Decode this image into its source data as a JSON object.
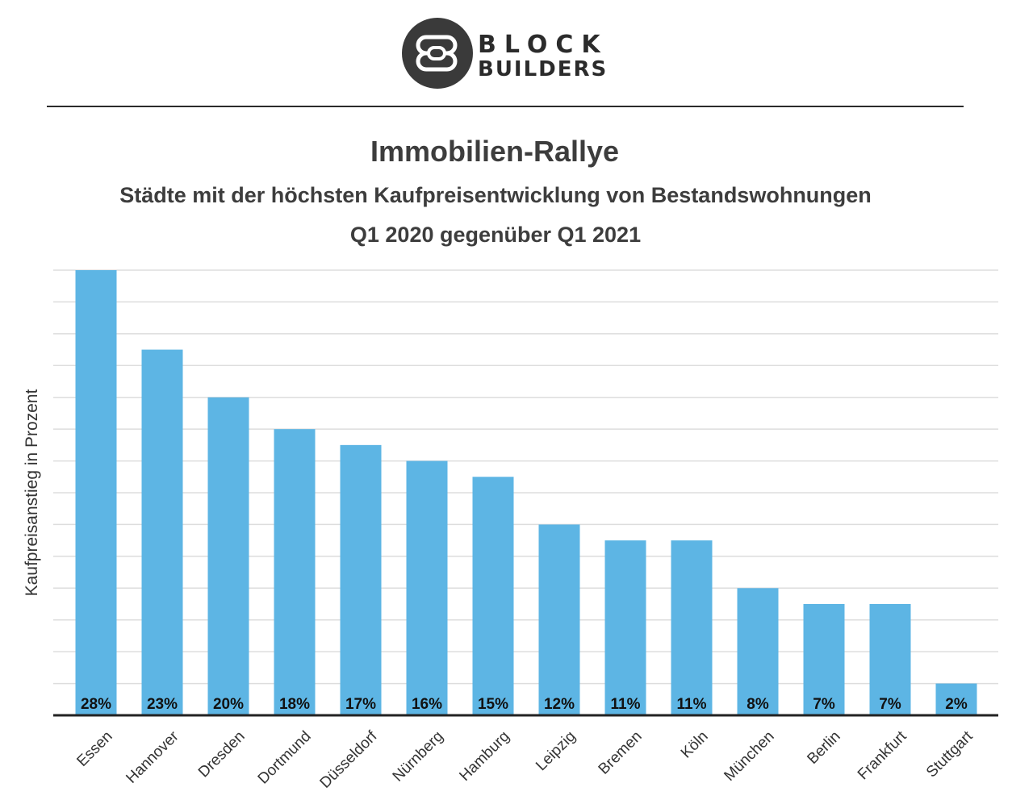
{
  "logo": {
    "line1": "BLOCK",
    "line2": "BUILDERS"
  },
  "colors": {
    "bar": "#5db5e4",
    "grid": "#dddddd",
    "axis": "#222222",
    "text": "#3d3d3d",
    "logo": "#3a3a3a"
  },
  "chart_data": {
    "type": "bar",
    "title": "Immobilien-Rallye",
    "subtitle": [
      "Städte mit der höchsten Kaufpreisentwicklung von Bestandswohnungen",
      "Q1 2020 gegenüber Q1 2021"
    ],
    "xlabel": "",
    "ylabel": "Kaufpreisanstieg in Prozent",
    "categories": [
      "Essen",
      "Hannover",
      "Dresden",
      "Dortmund",
      "Düsseldorf",
      "Nürnberg",
      "Hamburg",
      "Leipzig",
      "Bremen",
      "Köln",
      "München",
      "Berlin",
      "Frankfurt",
      "Stuttgart"
    ],
    "values": [
      28,
      23,
      20,
      18,
      17,
      16,
      15,
      12,
      11,
      11,
      8,
      7,
      7,
      2
    ],
    "data_labels": [
      "28%",
      "23%",
      "20%",
      "18%",
      "17%",
      "16%",
      "15%",
      "12%",
      "11%",
      "11%",
      "8%",
      "7%",
      "7%",
      "2%"
    ],
    "ylim": [
      0,
      28
    ],
    "gridline_step": 2,
    "grid": true,
    "y_tick_labels": false,
    "legend": "none"
  }
}
